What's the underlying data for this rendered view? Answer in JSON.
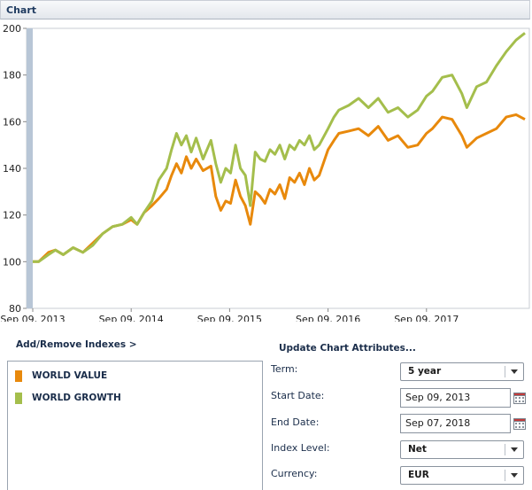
{
  "panel": {
    "title": "Chart"
  },
  "chart_data": {
    "type": "line",
    "ylim": [
      80,
      200
    ],
    "yticks": [
      80,
      100,
      120,
      140,
      160,
      180,
      200
    ],
    "xtick_labels": [
      "Sep 09, 2013",
      "Sep 09, 2014",
      "Sep 09, 2015",
      "Sep 09, 2016",
      "Sep 09, 2017"
    ],
    "series": [
      {
        "name": "WORLD VALUE",
        "color": "#e8890c",
        "x": [
          2013.69,
          2013.75,
          2013.85,
          2013.92,
          2014.0,
          2014.1,
          2014.2,
          2014.3,
          2014.4,
          2014.5,
          2014.6,
          2014.69,
          2014.75,
          2014.82,
          2014.9,
          2014.97,
          2015.05,
          2015.1,
          2015.15,
          2015.2,
          2015.25,
          2015.3,
          2015.35,
          2015.42,
          2015.5,
          2015.55,
          2015.6,
          2015.65,
          2015.7,
          2015.75,
          2015.8,
          2015.85,
          2015.9,
          2015.95,
          2016.0,
          2016.05,
          2016.1,
          2016.15,
          2016.2,
          2016.25,
          2016.3,
          2016.35,
          2016.4,
          2016.45,
          2016.5,
          2016.55,
          2016.6,
          2016.69,
          2016.75,
          2016.8,
          2016.9,
          2017.0,
          2017.1,
          2017.2,
          2017.3,
          2017.4,
          2017.5,
          2017.6,
          2017.69,
          2017.75,
          2017.85,
          2017.95,
          2018.05,
          2018.1,
          2018.2,
          2018.3,
          2018.4,
          2018.5,
          2018.6,
          2018.69
        ],
        "y": [
          100,
          100,
          104,
          105,
          103,
          106,
          104,
          108,
          112,
          115,
          116,
          118,
          116,
          121,
          124,
          127,
          131,
          137,
          142,
          138,
          145,
          140,
          144,
          139,
          141,
          128,
          122,
          126,
          125,
          135,
          128,
          124,
          116,
          130,
          128,
          125,
          131,
          129,
          133,
          127,
          136,
          134,
          138,
          133,
          140,
          135,
          137,
          148,
          152,
          155,
          156,
          157,
          154,
          158,
          152,
          154,
          149,
          150,
          155,
          157,
          162,
          161,
          154,
          149,
          153,
          155,
          157,
          162,
          163,
          161
        ]
      },
      {
        "name": "WORLD GROWTH",
        "color": "#a4be4c",
        "x": [
          2013.69,
          2013.75,
          2013.85,
          2013.92,
          2014.0,
          2014.1,
          2014.2,
          2014.3,
          2014.4,
          2014.5,
          2014.6,
          2014.69,
          2014.75,
          2014.82,
          2014.9,
          2014.97,
          2015.05,
          2015.1,
          2015.15,
          2015.2,
          2015.25,
          2015.3,
          2015.35,
          2015.42,
          2015.5,
          2015.55,
          2015.6,
          2015.65,
          2015.7,
          2015.75,
          2015.8,
          2015.85,
          2015.9,
          2015.95,
          2016.0,
          2016.05,
          2016.1,
          2016.15,
          2016.2,
          2016.25,
          2016.3,
          2016.35,
          2016.4,
          2016.45,
          2016.5,
          2016.55,
          2016.6,
          2016.69,
          2016.75,
          2016.8,
          2016.9,
          2017.0,
          2017.1,
          2017.2,
          2017.3,
          2017.4,
          2017.5,
          2017.6,
          2017.69,
          2017.75,
          2017.85,
          2017.95,
          2018.05,
          2018.1,
          2018.2,
          2018.3,
          2018.4,
          2018.5,
          2018.6,
          2018.69
        ],
        "y": [
          100,
          100,
          103,
          105,
          103,
          106,
          104,
          107,
          112,
          115,
          116,
          119,
          116,
          121,
          126,
          135,
          140,
          148,
          155,
          150,
          154,
          147,
          153,
          144,
          152,
          142,
          134,
          140,
          138,
          150,
          140,
          137,
          124,
          147,
          144,
          143,
          148,
          146,
          150,
          144,
          150,
          148,
          152,
          150,
          154,
          148,
          150,
          157,
          162,
          165,
          167,
          170,
          166,
          170,
          164,
          166,
          162,
          165,
          171,
          173,
          179,
          180,
          172,
          166,
          175,
          177,
          184,
          190,
          195,
          198
        ]
      }
    ]
  },
  "indexes_section": {
    "title": "Add/Remove Indexes >"
  },
  "attributes_section": {
    "title": "Update Chart Attributes..."
  },
  "attributes": {
    "term": {
      "label": "Term:",
      "value": "5 year"
    },
    "start_date": {
      "label": "Start Date:",
      "value": "Sep 09, 2013"
    },
    "end_date": {
      "label": "End Date:",
      "value": "Sep 07, 2018"
    },
    "index_level": {
      "label": "Index Level:",
      "value": "Net"
    },
    "currency": {
      "label": "Currency:",
      "value": "EUR"
    }
  }
}
